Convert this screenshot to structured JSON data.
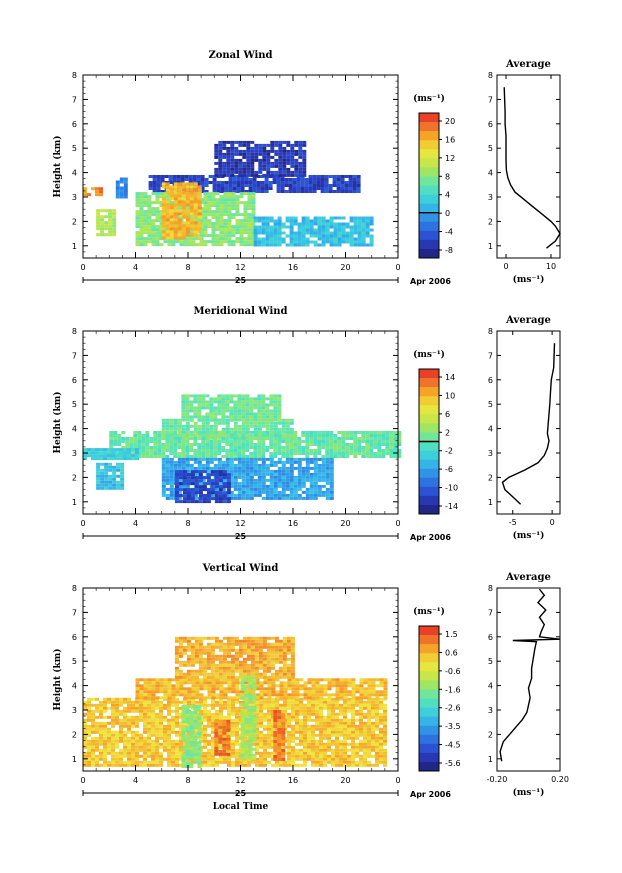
{
  "chart_data": [
    {
      "type": "heatmap",
      "title": "Zonal Wind",
      "xlabel": "",
      "ylabel": "Height (km)",
      "xlim": [
        0,
        24
      ],
      "ylim": [
        0.5,
        8
      ],
      "xticks": [
        "0",
        "4",
        "8",
        "12",
        "16",
        "20",
        "0"
      ],
      "yticks": [
        "1",
        "2",
        "3",
        "4",
        "5",
        "6",
        "7",
        "8"
      ],
      "date_label": "25",
      "date_suffix": "Apr 2006",
      "colorbar": {
        "unit": "(ms⁻¹)",
        "ticks": [
          "20",
          "16",
          "12",
          "8",
          "4",
          "0",
          "-4",
          "-8"
        ],
        "min": -10,
        "max": 22,
        "zero_line": 0
      },
      "field_regions": [
        {
          "x": [
            2.5,
            3.2
          ],
          "y": [
            3.0,
            3.8
          ],
          "value": -2
        },
        {
          "x": [
            5.0,
            21.0
          ],
          "y": [
            3.2,
            3.9
          ],
          "value": -6
        },
        {
          "x": [
            10.0,
            17.0
          ],
          "y": [
            3.9,
            5.3
          ],
          "value": -7
        },
        {
          "x": [
            4.0,
            13.0
          ],
          "y": [
            1.0,
            3.2
          ],
          "value": 8
        },
        {
          "x": [
            6.0,
            9.0
          ],
          "y": [
            1.3,
            3.6
          ],
          "value": 16
        },
        {
          "x": [
            13.0,
            22.0
          ],
          "y": [
            1.0,
            2.2
          ],
          "value": 2
        },
        {
          "x": [
            0.0,
            1.3
          ],
          "y": [
            3.1,
            3.4
          ],
          "value": 18
        },
        {
          "x": [
            1.0,
            2.5
          ],
          "y": [
            1.5,
            2.5
          ],
          "value": 10
        }
      ],
      "average_profile": {
        "title": "Average",
        "xlabel": "(ms⁻¹)",
        "xlim": [
          -2,
          12
        ],
        "xticks": [
          "0",
          "10"
        ],
        "height": [
          0.9,
          1.2,
          1.5,
          1.8,
          2.0,
          2.3,
          2.6,
          2.9,
          3.2,
          3.5,
          3.8,
          4.1,
          4.5,
          5.0,
          5.5,
          6.0,
          6.5,
          7.5
        ],
        "values": [
          9,
          11,
          12,
          11,
          10,
          8,
          6,
          4,
          2,
          1,
          0.4,
          0.1,
          0,
          0,
          0,
          -0.2,
          -0.2,
          -0.4
        ]
      }
    },
    {
      "type": "heatmap",
      "title": "Meridional Wind",
      "xlabel": "",
      "ylabel": "Height (km)",
      "xlim": [
        0,
        24
      ],
      "ylim": [
        0.5,
        8
      ],
      "xticks": [
        "0",
        "4",
        "8",
        "12",
        "16",
        "20",
        "0"
      ],
      "yticks": [
        "1",
        "2",
        "3",
        "4",
        "5",
        "6",
        "7",
        "8"
      ],
      "date_label": "25",
      "date_suffix": "Apr 2006",
      "colorbar": {
        "unit": "(ms⁻¹)",
        "ticks": [
          "14",
          "10",
          "6",
          "2",
          "-2",
          "-6",
          "-10",
          "-14"
        ],
        "min": -16,
        "max": 16,
        "zero_line": 0
      },
      "field_regions": [
        {
          "x": [
            2.0,
            24.0
          ],
          "y": [
            2.8,
            3.9
          ],
          "value": 0.5
        },
        {
          "x": [
            6.0,
            16.0
          ],
          "y": [
            3.6,
            4.4
          ],
          "value": 0.8
        },
        {
          "x": [
            7.5,
            15.0
          ],
          "y": [
            4.4,
            5.4
          ],
          "value": 1
        },
        {
          "x": [
            0.0,
            4.0
          ],
          "y": [
            2.8,
            3.2
          ],
          "value": -3
        },
        {
          "x": [
            6.0,
            19.0
          ],
          "y": [
            1.2,
            2.8
          ],
          "value": -6
        },
        {
          "x": [
            7.0,
            11.0
          ],
          "y": [
            1.0,
            2.3
          ],
          "value": -12
        },
        {
          "x": [
            1.0,
            3.0
          ],
          "y": [
            1.5,
            2.6
          ],
          "value": -4
        }
      ],
      "average_profile": {
        "title": "Average",
        "xlabel": "(ms⁻¹)",
        "xlim": [
          -7,
          1
        ],
        "xticks": [
          "-5",
          "0"
        ],
        "height": [
          0.9,
          1.2,
          1.5,
          1.8,
          2.0,
          2.3,
          2.6,
          2.9,
          3.2,
          3.5,
          3.8,
          4.2,
          4.6,
          5.0,
          5.5,
          6.0,
          6.5,
          7.5
        ],
        "values": [
          -4,
          -5,
          -6,
          -6.3,
          -5.5,
          -3.5,
          -1.8,
          -1.0,
          -0.6,
          -0.4,
          -0.6,
          -0.5,
          -0.4,
          -0.3,
          -0.2,
          -0.1,
          0.2,
          0.3
        ]
      }
    },
    {
      "type": "heatmap",
      "title": "Vertical Wind",
      "xlabel": "Local Time",
      "ylabel": "Height (km)",
      "xlim": [
        0,
        24
      ],
      "ylim": [
        0.5,
        8
      ],
      "xticks": [
        "0",
        "4",
        "8",
        "12",
        "16",
        "20",
        "0"
      ],
      "yticks": [
        "1",
        "2",
        "3",
        "4",
        "5",
        "6",
        "7",
        "8"
      ],
      "date_label": "25",
      "date_suffix": "Apr 2006",
      "colorbar": {
        "unit": "(ms⁻¹)",
        "ticks": [
          "1.5",
          "0.6",
          "-0.6",
          "-1.6",
          "-2.6",
          "-3.5",
          "-4.5",
          "-5.6"
        ],
        "min": -6,
        "max": 2,
        "zero_line": null
      },
      "field_regions": [
        {
          "x": [
            0.0,
            23.0
          ],
          "y": [
            0.7,
            3.5
          ],
          "value": 0.3
        },
        {
          "x": [
            4.0,
            23.0
          ],
          "y": [
            3.5,
            4.3
          ],
          "value": 0.5
        },
        {
          "x": [
            7.0,
            16.0
          ],
          "y": [
            4.3,
            6.0
          ],
          "value": 0.6
        },
        {
          "x": [
            7.5,
            9.0
          ],
          "y": [
            0.7,
            3.2
          ],
          "value": -1.5
        },
        {
          "x": [
            12.0,
            13.0
          ],
          "y": [
            1.0,
            4.4
          ],
          "value": -1.2
        },
        {
          "x": [
            14.5,
            15.2
          ],
          "y": [
            1.0,
            3.0
          ],
          "value": 1.2
        },
        {
          "x": [
            10.0,
            11.0
          ],
          "y": [
            1.2,
            2.6
          ],
          "value": 1.2
        }
      ],
      "average_profile": {
        "title": "Average",
        "xlabel": "(ms⁻¹)",
        "xlim": [
          -0.2,
          0.2
        ],
        "xticks": [
          "-0.20",
          "0.20"
        ],
        "height": [
          0.9,
          1.3,
          1.7,
          2.0,
          2.3,
          2.6,
          2.9,
          3.2,
          3.5,
          3.9,
          4.3,
          4.7,
          5.1,
          5.5,
          5.8,
          5.85,
          5.9,
          6.0,
          6.2,
          6.5,
          6.8,
          7.1,
          7.4,
          7.7,
          7.95
        ],
        "values": [
          -0.17,
          -0.18,
          -0.16,
          -0.12,
          -0.08,
          -0.04,
          -0.01,
          0.0,
          0.01,
          0.0,
          0.02,
          0.02,
          0.03,
          0.04,
          0.05,
          -0.1,
          0.2,
          0.07,
          0.08,
          0.1,
          0.07,
          0.11,
          0.06,
          0.1,
          0.07
        ]
      }
    }
  ]
}
